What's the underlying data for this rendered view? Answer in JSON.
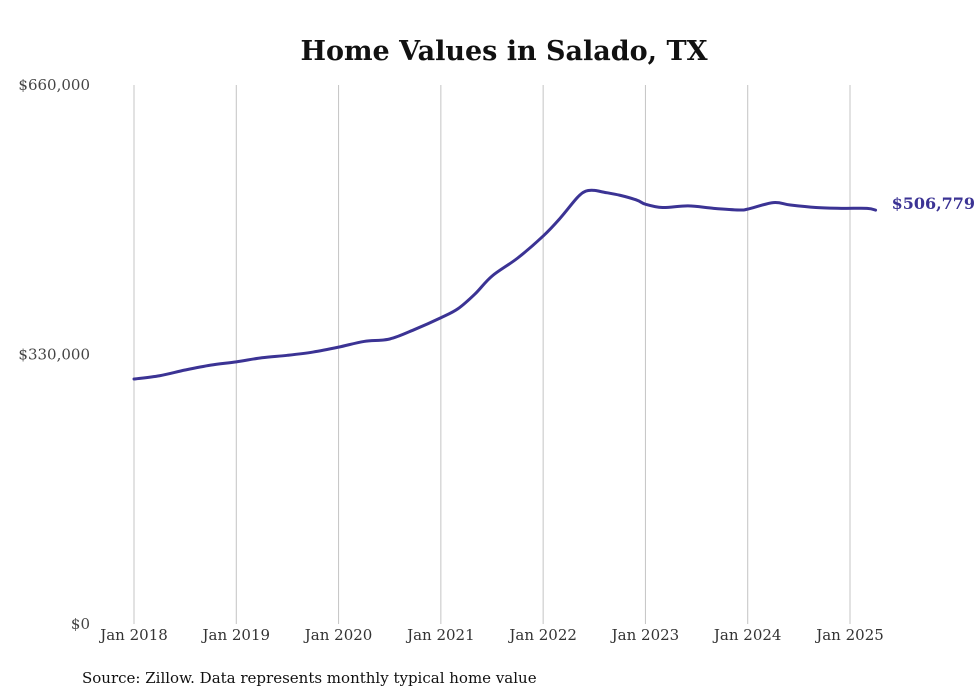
{
  "chart_data": {
    "type": "line",
    "title": "Home Values in Salado, TX",
    "xlabel": "",
    "ylabel": "",
    "ylim": [
      0,
      660000
    ],
    "y_ticks": [
      {
        "value": 0,
        "label": "$0"
      },
      {
        "value": 330000,
        "label": "$330,000"
      },
      {
        "value": 660000,
        "label": "$660,000"
      }
    ],
    "x_ticks": [
      {
        "value": 2018,
        "label": "Jan 2018"
      },
      {
        "value": 2019,
        "label": "Jan 2019"
      },
      {
        "value": 2020,
        "label": "Jan 2020"
      },
      {
        "value": 2021,
        "label": "Jan 2021"
      },
      {
        "value": 2022,
        "label": "Jan 2022"
      },
      {
        "value": 2023,
        "label": "Jan 2023"
      },
      {
        "value": 2024,
        "label": "Jan 2024"
      },
      {
        "value": 2025,
        "label": "Jan 2025"
      }
    ],
    "grid": "vertical",
    "line_color": "#3b3394",
    "series": [
      {
        "x": [
          2018.0,
          2018.25,
          2018.5,
          2018.75,
          2019.0,
          2019.25,
          2019.5,
          2019.75,
          2020.0,
          2020.25,
          2020.5,
          2020.75,
          2021.0,
          2021.167,
          2021.333,
          2021.5,
          2021.75,
          2022.0,
          2022.167,
          2022.333,
          2022.417,
          2022.5,
          2022.583,
          2022.75,
          2022.917,
          2023.0,
          2023.167,
          2023.417,
          2023.667,
          2023.917,
          2024.0,
          2024.25,
          2024.417,
          2024.667,
          2024.917,
          2025.167,
          2025.25
        ],
        "values": [
          300000,
          304000,
          311000,
          317000,
          321000,
          326000,
          329000,
          333000,
          339000,
          346000,
          349000,
          361000,
          375000,
          386000,
          404000,
          426000,
          448000,
          475000,
          497000,
          522000,
          530000,
          531000,
          529000,
          525000,
          519000,
          514000,
          510000,
          512000,
          509000,
          507000,
          508000,
          516000,
          513000,
          510000,
          509000,
          509000,
          506779
        ]
      }
    ],
    "end_label": "$506,779",
    "source": "Source: Zillow. Data represents monthly typical home value"
  }
}
